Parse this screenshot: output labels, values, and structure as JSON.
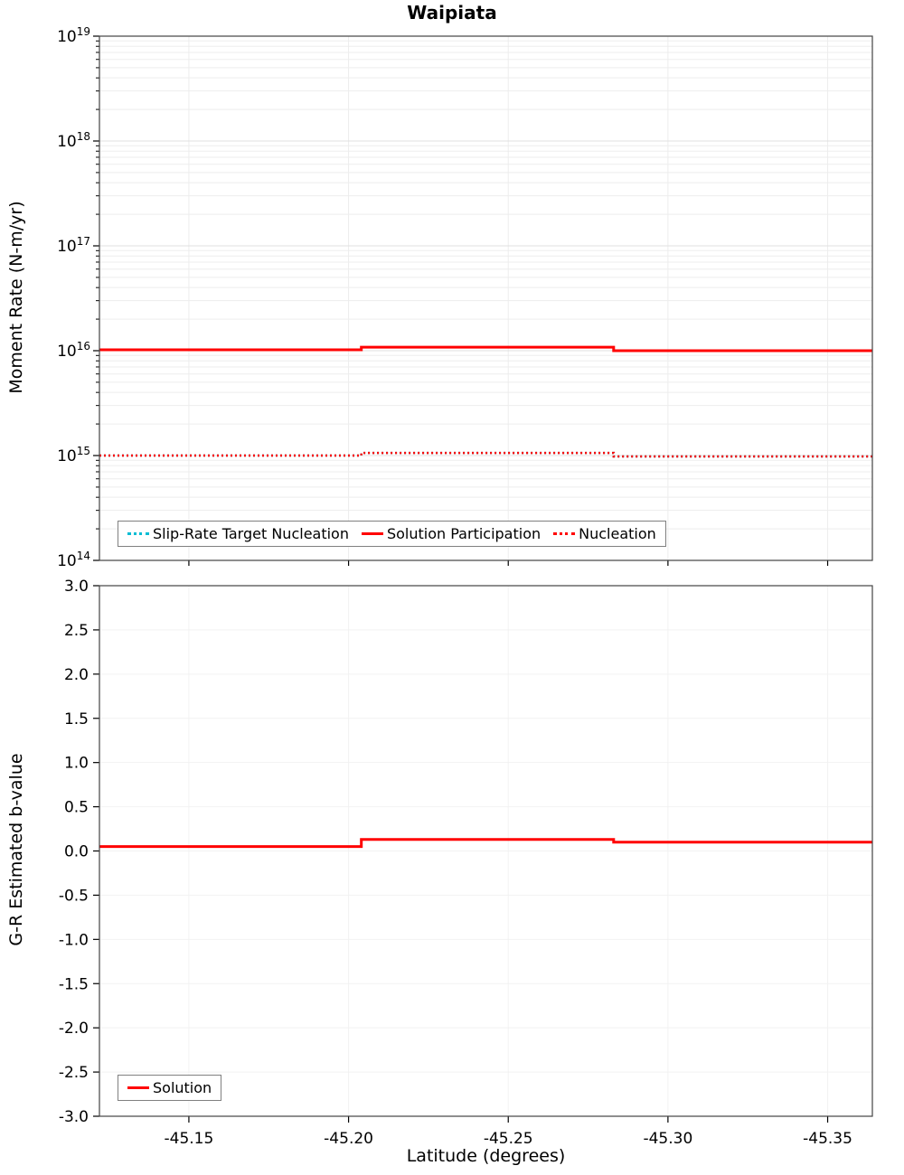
{
  "chart_data": [
    {
      "type": "line",
      "title": "Waipiata",
      "ylabel": "Moment Rate (N-m/yr)",
      "yscale": "log",
      "ylim_exp": [
        14,
        19
      ],
      "xlim": [
        -45.122,
        -45.364
      ],
      "xticks": [
        -45.15,
        -45.2,
        -45.25,
        -45.3,
        -45.35
      ],
      "grid": true,
      "legend_position": "bottom-inside",
      "series": [
        {
          "name": "Slip-Rate Target Nucleation",
          "color": "#00bcd4",
          "style": "dotted",
          "width": 2.5,
          "x": [
            -45.122,
            -45.204,
            -45.204,
            -45.283,
            -45.283,
            -45.364
          ],
          "y": [
            1000000000000000.0,
            1000000000000000.0,
            1060000000000000.0,
            1060000000000000.0,
            980000000000000.0,
            980000000000000.0
          ]
        },
        {
          "name": "Solution Participation",
          "color": "#ff0000",
          "style": "solid",
          "width": 3,
          "x": [
            -45.122,
            -45.204,
            -45.204,
            -45.283,
            -45.283,
            -45.364
          ],
          "y": [
            1.02e+16,
            1.02e+16,
            1.08e+16,
            1.08e+16,
            1e+16,
            1e+16
          ]
        },
        {
          "name": "Nucleation",
          "color": "#ff0000",
          "style": "dotted",
          "width": 2.5,
          "x": [
            -45.122,
            -45.204,
            -45.204,
            -45.283,
            -45.283,
            -45.364
          ],
          "y": [
            1000000000000000.0,
            1000000000000000.0,
            1060000000000000.0,
            1060000000000000.0,
            980000000000000.0,
            980000000000000.0
          ]
        }
      ]
    },
    {
      "type": "line",
      "ylabel": "G-R Estimated b-value",
      "xlabel": "Latitude (degrees)",
      "ylim": [
        -3.0,
        3.0
      ],
      "ytick_step": 0.5,
      "xlim": [
        -45.122,
        -45.364
      ],
      "xticks": [
        -45.15,
        -45.2,
        -45.25,
        -45.3,
        -45.35
      ],
      "grid": true,
      "legend_position": "bottom-left-inside",
      "series": [
        {
          "name": "Solution",
          "color": "#ff0000",
          "style": "solid",
          "width": 3,
          "x": [
            -45.122,
            -45.204,
            -45.204,
            -45.283,
            -45.283,
            -45.364
          ],
          "y": [
            0.05,
            0.05,
            0.13,
            0.13,
            0.1,
            0.1
          ]
        }
      ]
    }
  ]
}
